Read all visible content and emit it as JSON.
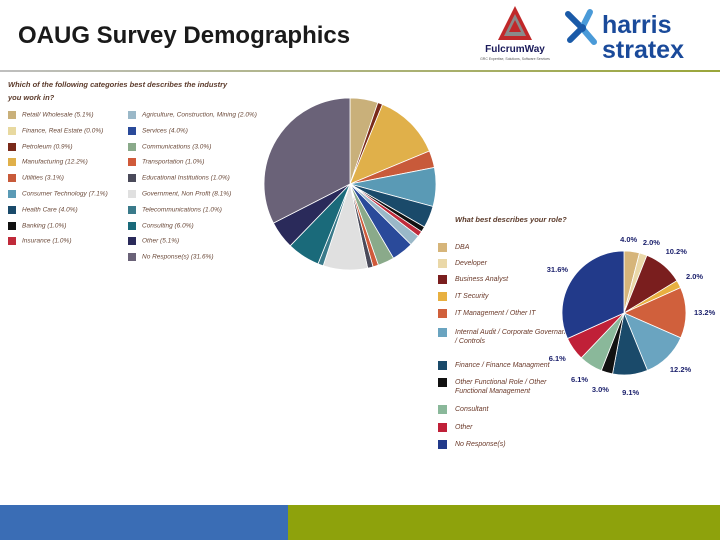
{
  "title": "OAUG Survey Demographics",
  "logos": {
    "fulcrumway": {
      "name": "FulcrumWay",
      "tagline": "GRC Expertise, Solutions, Software Services"
    },
    "harris": {
      "line1": "harris",
      "line2": "stratex"
    }
  },
  "chart_data": [
    {
      "type": "pie",
      "title": "Which of the following categories best describes the industry you work in?",
      "slices": [
        {
          "label": "Retail/ Wholesale (5.1%)",
          "value": 5.1,
          "color": "#c9b07a"
        },
        {
          "label": "Finance, Real Estate (0.0%)",
          "value": 0.0,
          "color": "#e8d9a0"
        },
        {
          "label": "Petroleum (0.9%)",
          "value": 0.9,
          "color": "#7a2a1a"
        },
        {
          "label": "Manufacturing (12.2%)",
          "value": 12.2,
          "color": "#e0b04a"
        },
        {
          "label": "Utilities (3.1%)",
          "value": 3.1,
          "color": "#c85a3a"
        },
        {
          "label": "Consumer Technology (7.1%)",
          "value": 7.1,
          "color": "#5a9ab5"
        },
        {
          "label": "Health Care (4.0%)",
          "value": 4.0,
          "color": "#1a4a6a"
        },
        {
          "label": "Banking (1.0%)",
          "value": 1.0,
          "color": "#111111"
        },
        {
          "label": "Insurance (1.0%)",
          "value": 1.0,
          "color": "#c02a3a"
        },
        {
          "label": "Agriculture, Construction, Mining (2.0%)",
          "value": 2.0,
          "color": "#9ab8c8"
        },
        {
          "label": "Services (4.0%)",
          "value": 4.0,
          "color": "#2a4a9a"
        },
        {
          "label": "Communications (3.0%)",
          "value": 3.0,
          "color": "#8aaa8a"
        },
        {
          "label": "Transportation (1.0%)",
          "value": 1.0,
          "color": "#d05a3a"
        },
        {
          "label": "Educational Institutions (1.0%)",
          "value": 1.0,
          "color": "#4a4a5a"
        },
        {
          "label": "Government, Non Profit (8.1%)",
          "value": 8.1,
          "color": "#e0e0e0"
        },
        {
          "label": "Telecommunications (1.0%)",
          "value": 1.0,
          "color": "#3a7a8a"
        },
        {
          "label": "Consulting (6.0%)",
          "value": 6.0,
          "color": "#1a6a7a"
        },
        {
          "label": "Other (5.1%)",
          "value": 5.1,
          "color": "#2a2a5a"
        },
        {
          "label": "No Response(s) (31.6%)",
          "value": 31.6,
          "color": "#6a6278"
        }
      ]
    },
    {
      "type": "pie",
      "title": "What best describes your role?",
      "slices": [
        {
          "label": "DBA",
          "value": 4.0,
          "display": "4.0%",
          "color": "#d6b57a"
        },
        {
          "label": "Developer",
          "value": 2.0,
          "display": "2.0%",
          "color": "#ead8a8"
        },
        {
          "label": "Business Analyst",
          "value": 10.2,
          "display": "10.2%",
          "color": "#7a1e1e"
        },
        {
          "label": "IT Security",
          "value": 2.0,
          "display": "2.0%",
          "color": "#e8b040"
        },
        {
          "label": "IT Management / Other IT",
          "value": 13.2,
          "display": "13.2%",
          "color": "#d0603c"
        },
        {
          "label": "Internal Audit / Corporate Governance / Controls",
          "value": 12.2,
          "display": "12.2%",
          "color": "#6aa4c0"
        },
        {
          "label": "Finance / Finance Managment",
          "value": 9.1,
          "display": "9.1%",
          "color": "#1a4a6a"
        },
        {
          "label": "Other Functional Role / Other Functional Management",
          "value": 3.0,
          "display": "3.0%",
          "color": "#111111"
        },
        {
          "label": "Consultant",
          "value": 6.1,
          "display": "6.1%",
          "color": "#8ab89a"
        },
        {
          "label": "Other",
          "value": 6.1,
          "display": "6.1%",
          "color": "#c02038"
        },
        {
          "label": "No Response(s)",
          "value": 31.6,
          "display": "31.6%",
          "color": "#223a8a"
        }
      ]
    }
  ]
}
